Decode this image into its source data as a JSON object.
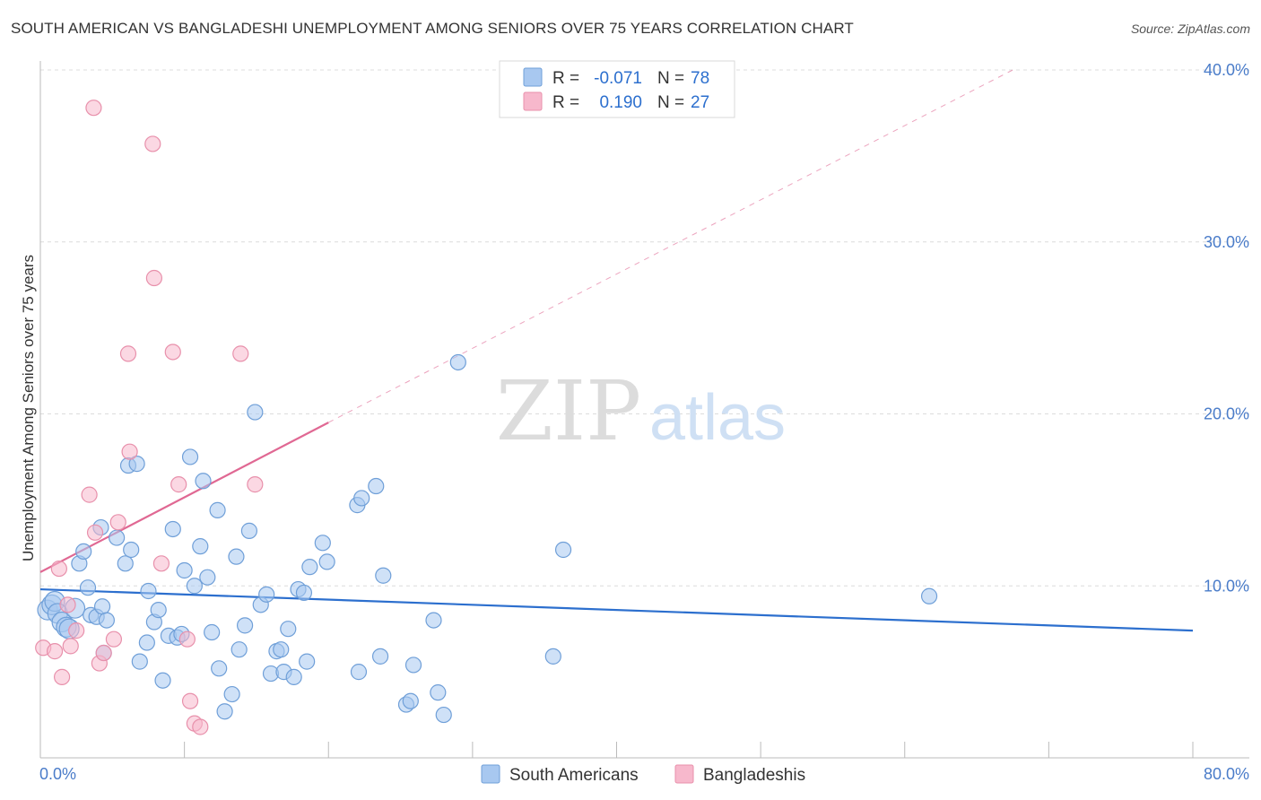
{
  "header": {
    "title": "SOUTH AMERICAN VS BANGLADESHI UNEMPLOYMENT AMONG SENIORS OVER 75 YEARS CORRELATION CHART",
    "source": "Source: ZipAtlas.com"
  },
  "watermark": {
    "zip": "ZIP",
    "atlas": "atlas"
  },
  "chart_data": {
    "type": "scatter",
    "title": "SOUTH AMERICAN VS BANGLADESHI UNEMPLOYMENT AMONG SENIORS OVER 75 YEARS CORRELATION CHART",
    "xlabel": "",
    "ylabel": "Unemployment Among Seniors over 75 years",
    "xlim": [
      0,
      80
    ],
    "ylim": [
      0,
      40
    ],
    "x_tick_labels": {
      "min": "0.0%",
      "max": "80.0%"
    },
    "y_ticks": [
      {
        "value": 10,
        "label": "10.0%"
      },
      {
        "value": 20,
        "label": "20.0%"
      },
      {
        "value": 30,
        "label": "30.0%"
      },
      {
        "value": 40,
        "label": "40.0%"
      }
    ],
    "grid": true,
    "legend_position": "bottom-center",
    "stats": [
      {
        "r_label": "R =",
        "r_value": "-0.071",
        "n_label": "N =",
        "n_value": "78"
      },
      {
        "r_label": "R =",
        "r_value": "0.190",
        "n_label": "N =",
        "n_value": "27"
      }
    ],
    "series": [
      {
        "name": "South Americans",
        "color": "#a8c8f0",
        "edge_color": "#6f9fd8",
        "line_color": "#2c6fce",
        "trend": {
          "x": [
            0,
            80
          ],
          "y": [
            9.8,
            7.4
          ],
          "dashed_extension": false
        },
        "points": [
          [
            0.5,
            8.6
          ],
          [
            0.8,
            8.9
          ],
          [
            1.0,
            9.1
          ],
          [
            1.2,
            8.4
          ],
          [
            1.5,
            7.9
          ],
          [
            1.8,
            7.6
          ],
          [
            2.0,
            7.5
          ],
          [
            2.4,
            8.7
          ],
          [
            2.7,
            11.3
          ],
          [
            3.0,
            12.0
          ],
          [
            3.3,
            9.9
          ],
          [
            3.5,
            8.3
          ],
          [
            3.9,
            8.2
          ],
          [
            4.3,
            8.8
          ],
          [
            4.4,
            6.1
          ],
          [
            4.6,
            8.0
          ],
          [
            4.2,
            13.4
          ],
          [
            5.3,
            12.8
          ],
          [
            5.9,
            11.3
          ],
          [
            6.3,
            12.1
          ],
          [
            6.1,
            17.0
          ],
          [
            6.7,
            17.1
          ],
          [
            6.9,
            5.6
          ],
          [
            7.4,
            6.7
          ],
          [
            7.5,
            9.7
          ],
          [
            7.9,
            7.9
          ],
          [
            8.2,
            8.6
          ],
          [
            8.5,
            4.5
          ],
          [
            8.9,
            7.1
          ],
          [
            9.2,
            13.3
          ],
          [
            9.5,
            7.0
          ],
          [
            9.8,
            7.2
          ],
          [
            10.0,
            10.9
          ],
          [
            10.4,
            17.5
          ],
          [
            10.7,
            10.0
          ],
          [
            11.1,
            12.3
          ],
          [
            11.3,
            16.1
          ],
          [
            11.6,
            10.5
          ],
          [
            11.9,
            7.3
          ],
          [
            12.3,
            14.4
          ],
          [
            12.4,
            5.2
          ],
          [
            12.8,
            2.7
          ],
          [
            13.3,
            3.7
          ],
          [
            13.6,
            11.7
          ],
          [
            13.8,
            6.3
          ],
          [
            14.2,
            7.7
          ],
          [
            14.5,
            13.2
          ],
          [
            14.9,
            20.1
          ],
          [
            15.3,
            8.9
          ],
          [
            15.7,
            9.5
          ],
          [
            16.0,
            4.9
          ],
          [
            16.4,
            6.2
          ],
          [
            16.7,
            6.3
          ],
          [
            16.9,
            5.0
          ],
          [
            17.2,
            7.5
          ],
          [
            17.6,
            4.7
          ],
          [
            17.9,
            9.8
          ],
          [
            18.3,
            9.6
          ],
          [
            18.5,
            5.6
          ],
          [
            18.7,
            11.1
          ],
          [
            19.6,
            12.5
          ],
          [
            19.9,
            11.4
          ],
          [
            22.0,
            14.7
          ],
          [
            22.3,
            15.1
          ],
          [
            22.1,
            5.0
          ],
          [
            23.3,
            15.8
          ],
          [
            23.6,
            5.9
          ],
          [
            23.8,
            10.6
          ],
          [
            25.4,
            3.1
          ],
          [
            25.7,
            3.3
          ],
          [
            25.9,
            5.4
          ],
          [
            27.3,
            8.0
          ],
          [
            27.6,
            3.8
          ],
          [
            28.0,
            2.5
          ],
          [
            29.0,
            23.0
          ],
          [
            35.6,
            5.9
          ],
          [
            36.3,
            12.1
          ],
          [
            61.7,
            9.4
          ]
        ]
      },
      {
        "name": "Bangladeshis",
        "color": "#f7b8cc",
        "edge_color": "#e890ab",
        "line_color": "#e06893",
        "trend": {
          "x": [
            0,
            20
          ],
          "y": [
            10.8,
            19.5
          ],
          "dashed_extension": true,
          "dash_to": [
            67.5,
            40.0
          ]
        },
        "points": [
          [
            0.2,
            6.4
          ],
          [
            1.0,
            6.2
          ],
          [
            1.3,
            11.0
          ],
          [
            1.5,
            4.7
          ],
          [
            1.9,
            8.9
          ],
          [
            2.1,
            6.5
          ],
          [
            2.5,
            7.4
          ],
          [
            3.4,
            15.3
          ],
          [
            3.8,
            13.1
          ],
          [
            3.7,
            37.8
          ],
          [
            4.1,
            5.5
          ],
          [
            5.1,
            6.9
          ],
          [
            5.4,
            13.7
          ],
          [
            6.1,
            23.5
          ],
          [
            6.2,
            17.8
          ],
          [
            7.8,
            35.7
          ],
          [
            7.9,
            27.9
          ],
          [
            8.4,
            11.3
          ],
          [
            9.2,
            23.6
          ],
          [
            9.6,
            15.9
          ],
          [
            10.2,
            6.9
          ],
          [
            10.4,
            3.3
          ],
          [
            10.7,
            2.0
          ],
          [
            11.1,
            1.8
          ],
          [
            13.9,
            23.5
          ],
          [
            14.9,
            15.9
          ],
          [
            4.4,
            6.1
          ]
        ]
      }
    ]
  }
}
